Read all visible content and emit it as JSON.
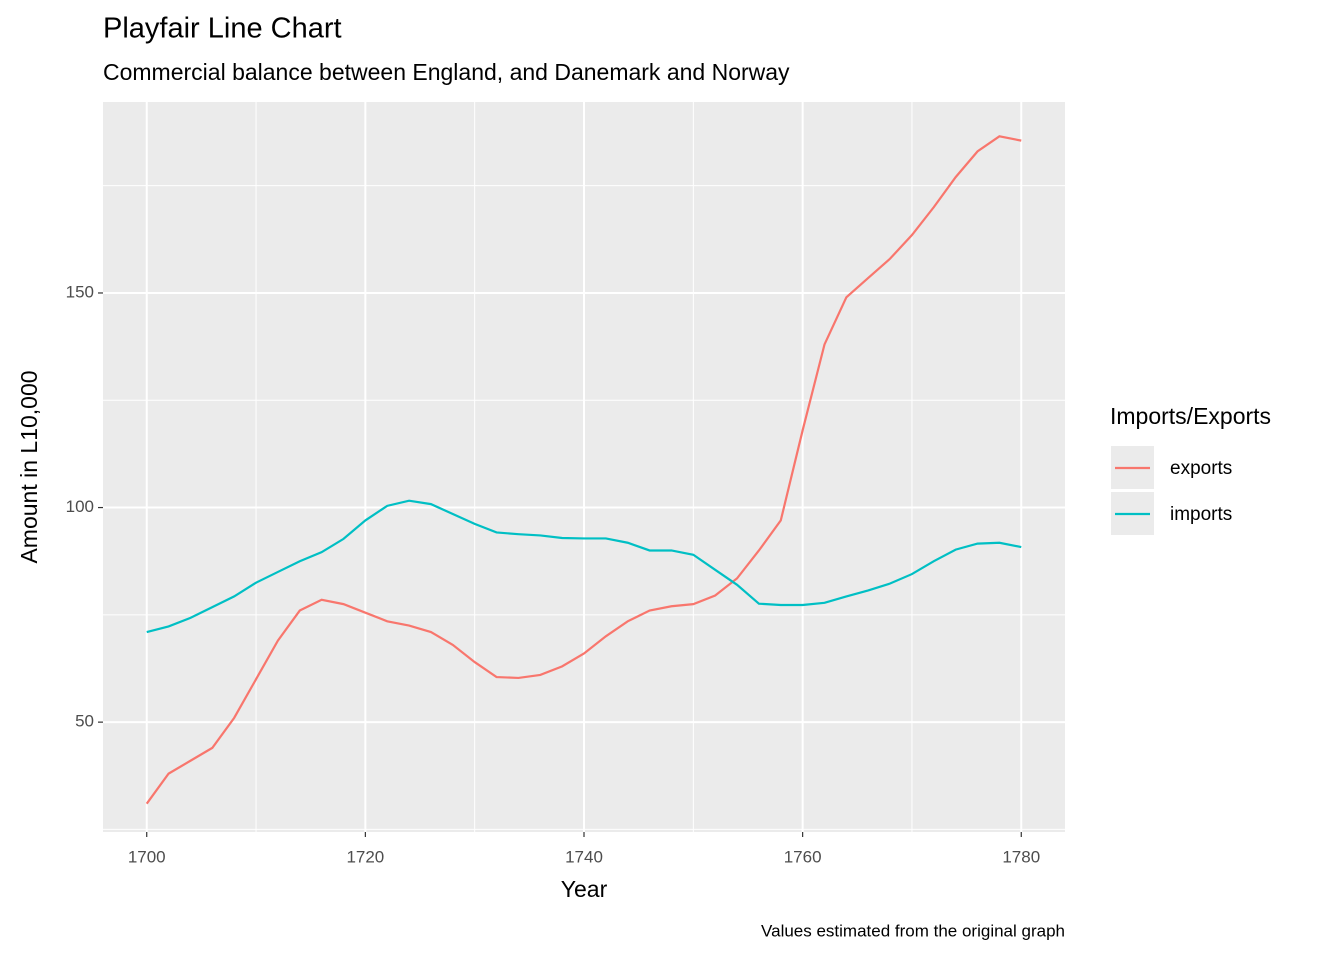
{
  "chart_data": {
    "type": "line",
    "title": "Playfair Line Chart",
    "subtitle": "Commercial balance between England, and Danemark and Norway",
    "x_label": "Year",
    "y_label": "Amount in L10,000",
    "caption": "Values estimated from the original graph",
    "legend_title": "Imports/Exports",
    "legend_position": "right",
    "grid": true,
    "x": [
      1700,
      1702,
      1704,
      1706,
      1708,
      1710,
      1712,
      1714,
      1716,
      1718,
      1720,
      1722,
      1724,
      1726,
      1728,
      1730,
      1732,
      1734,
      1736,
      1738,
      1740,
      1742,
      1744,
      1746,
      1748,
      1750,
      1752,
      1754,
      1756,
      1758,
      1760,
      1762,
      1764,
      1766,
      1768,
      1770,
      1772,
      1774,
      1776,
      1778,
      1780
    ],
    "series": [
      {
        "name": "exports",
        "color": "#F8766D",
        "values": [
          31,
          38,
          41,
          44,
          51,
          60,
          69,
          76,
          78.5,
          77.5,
          75.5,
          73.5,
          72.5,
          71,
          68,
          64,
          60.5,
          60.3,
          61,
          63,
          66,
          70,
          73.5,
          76,
          77,
          77.5,
          79.5,
          83.5,
          90,
          97,
          118,
          138,
          149,
          153.5,
          158,
          163.5,
          170,
          177,
          183,
          186.5,
          185.5
        ]
      },
      {
        "name": "imports",
        "color": "#00BFC4",
        "values": [
          71,
          72.3,
          74.3,
          76.8,
          79.3,
          82.5,
          85,
          87.5,
          89.6,
          92.7,
          97,
          100.4,
          101.6,
          100.8,
          98.5,
          96.2,
          94.2,
          93.8,
          93.5,
          92.9,
          92.8,
          92.8,
          91.8,
          90,
          90,
          89,
          85.5,
          82,
          77.6,
          77.3,
          77.3,
          77.8,
          79.3,
          80.7,
          82.3,
          84.5,
          87.5,
          90.2,
          91.6,
          91.8,
          90.8
        ]
      }
    ],
    "xlim": [
      1696,
      1784
    ],
    "ylim": [
      24.4,
      194.5
    ],
    "xticks": [
      1700,
      1720,
      1740,
      1760,
      1780
    ],
    "yticks": [
      50,
      100,
      150
    ]
  }
}
